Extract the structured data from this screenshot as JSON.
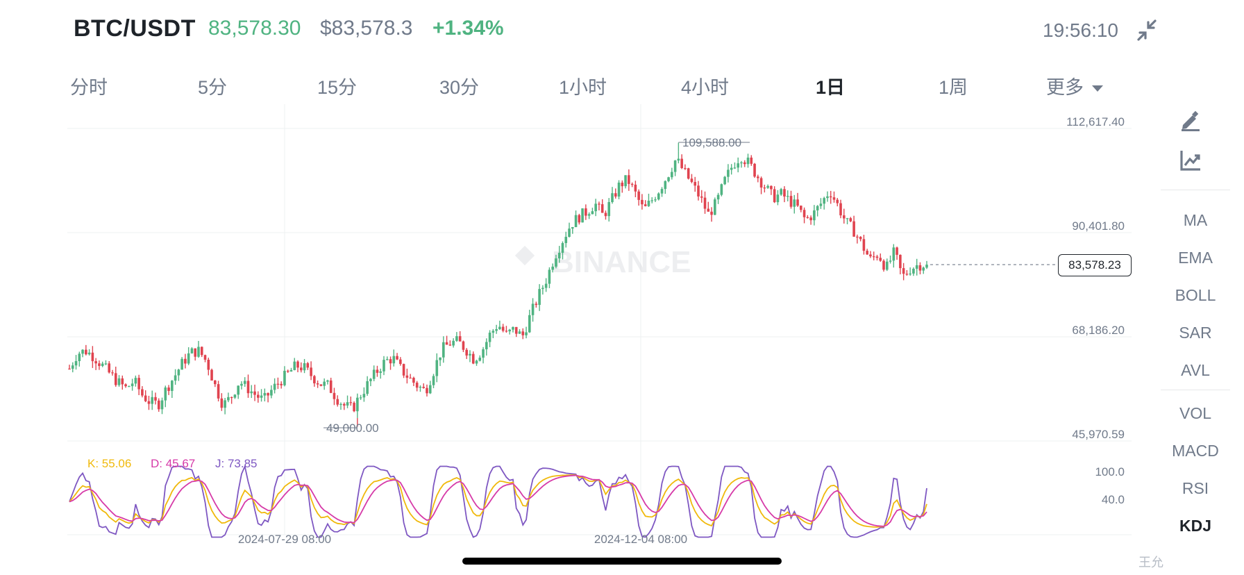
{
  "header": {
    "pair": "BTC/USDT",
    "last_price": "83,578.30",
    "usd_price": "$83,578.3",
    "change": "+1.34%",
    "time": "19:56:10"
  },
  "intervals": [
    {
      "label": "分时",
      "active": false
    },
    {
      "label": "5分",
      "active": false
    },
    {
      "label": "15分",
      "active": false
    },
    {
      "label": "30分",
      "active": false
    },
    {
      "label": "1小时",
      "active": false
    },
    {
      "label": "4小时",
      "active": false
    },
    {
      "label": "1日",
      "active": true
    },
    {
      "label": "1周",
      "active": false
    },
    {
      "label": "更多",
      "active": false
    }
  ],
  "indicators": {
    "main": [
      "MA",
      "EMA",
      "BOLL",
      "SAR",
      "AVL"
    ],
    "sub": [
      "VOL",
      "MACD",
      "RSI",
      "KDJ"
    ],
    "active_sub": "KDJ"
  },
  "price_axis": [
    "112,617.40",
    "90,401.80",
    "68,186.20",
    "45,970.59"
  ],
  "current_price_label": "83,578.23",
  "high_label": "109,588.00",
  "low_label": "49,000.00",
  "watermark": "BINANCE",
  "kdj": {
    "k_label": "K: 55.06",
    "d_label": "D: 45.67",
    "j_label": "J: 73.85",
    "axis": [
      "100.0",
      "40.0"
    ]
  },
  "x_axis": [
    "2024-07-29 08:00",
    "2024-12-04 08:00"
  ],
  "corner_watermark": "王允",
  "colors": {
    "up": "#4fb381",
    "down": "#e0434f",
    "k": "#f0b90b",
    "d": "#d63aa8",
    "j": "#7e57c2",
    "text": "#707a8a"
  },
  "chart_data": {
    "type": "candlestick",
    "y_range": [
      45970.59,
      112617.4
    ],
    "high": 109588.0,
    "low": 49000.0,
    "last": 83578.23,
    "approx_close_path": [
      61400,
      64700,
      65200,
      64000,
      62200,
      60300,
      58500,
      57200,
      58800,
      55800,
      54200,
      53800,
      57200,
      59800,
      62700,
      64800,
      65200,
      62800,
      57800,
      53600,
      55400,
      58700,
      57300,
      55800,
      54600,
      56800,
      58700,
      60300,
      62000,
      61600,
      59800,
      58200,
      57800,
      55200,
      53500,
      52800,
      55800,
      58400,
      60800,
      62900,
      63700,
      61200,
      59400,
      57800,
      56600,
      60800,
      65400,
      66800,
      67200,
      65600,
      63400,
      65200,
      68700,
      70900,
      68600,
      69800,
      68200,
      72800,
      76900,
      80600,
      85400,
      88900,
      92200,
      93800,
      94900,
      96600,
      93900,
      97200,
      100500,
      101800,
      98600,
      95100,
      97300,
      99800,
      102800,
      106100,
      103400,
      100700,
      97800,
      94300,
      96700,
      101400,
      104800,
      106800,
      105200,
      102600,
      100200,
      97900,
      98600,
      97300,
      95800,
      93100,
      94400,
      96800,
      99400,
      96200,
      92700,
      90800,
      87800,
      84600,
      85900,
      82700,
      86300,
      80900,
      82800,
      83600,
      83578
    ]
  }
}
